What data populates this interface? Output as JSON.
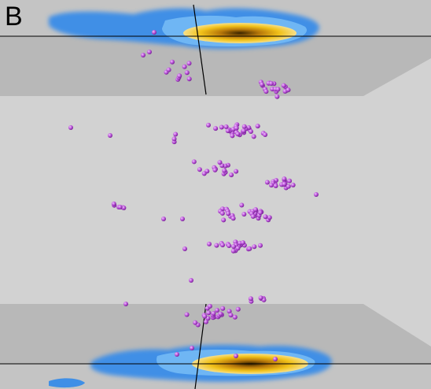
{
  "panel_label": "B",
  "colors": {
    "background": "#d2d2d2",
    "membrane_band": "#b5b5b5",
    "density_blue": "#3f8fe6",
    "density_yellow": "#f2c21a",
    "density_core": "#b8780a",
    "particle": "#b84fd6",
    "line": "#000000"
  },
  "particle_count": 210
}
